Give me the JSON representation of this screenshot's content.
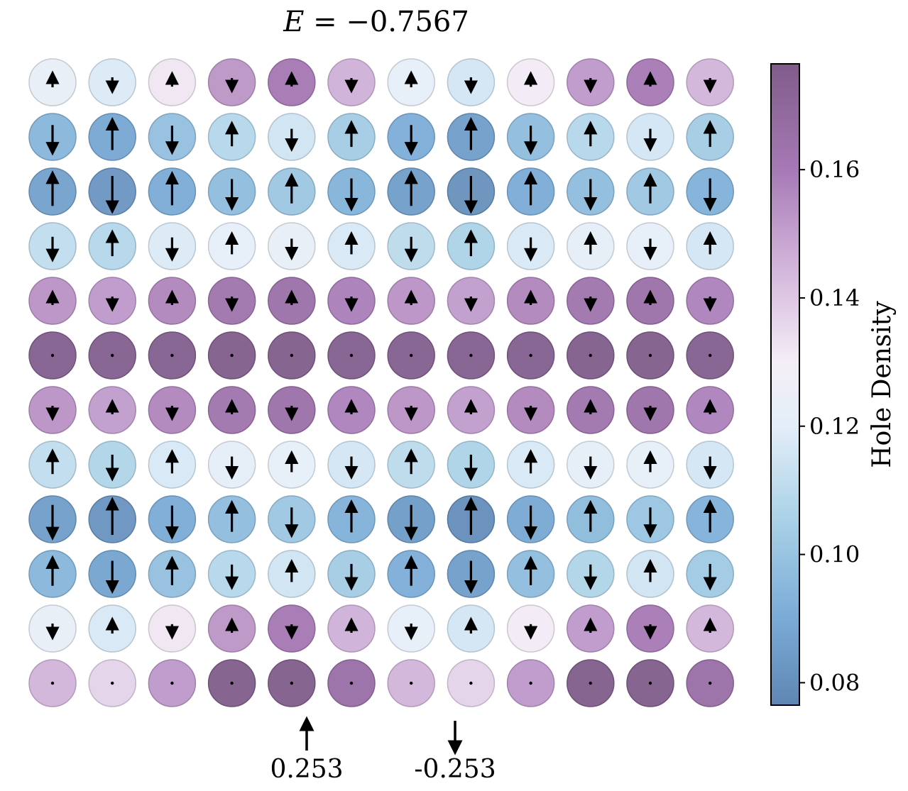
{
  "chart_data": {
    "type": "heatmap",
    "title": "E = −0.7567",
    "title_parts": {
      "symbol": "E",
      "rest": " = −0.7567"
    },
    "colorbar": {
      "label": "Hole Density",
      "ticks": [
        "0.08",
        "0.10",
        "0.12",
        "0.14",
        "0.16"
      ],
      "tick_values": [
        0.08,
        0.1,
        0.12,
        0.14,
        0.16
      ],
      "range": [
        0.0765,
        0.1765
      ],
      "colormap": [
        {
          "v": 0.0765,
          "color": "#5f86b3"
        },
        {
          "v": 0.09,
          "color": "#7aabd6"
        },
        {
          "v": 0.105,
          "color": "#a8d0e6"
        },
        {
          "v": 0.12,
          "color": "#e3eef8"
        },
        {
          "v": 0.13,
          "color": "#f4eef6"
        },
        {
          "v": 0.145,
          "color": "#d2b4da"
        },
        {
          "v": 0.16,
          "color": "#a679b5"
        },
        {
          "v": 0.1765,
          "color": "#805c8a"
        }
      ]
    },
    "legend": [
      {
        "arrow": "up",
        "value": "0.253"
      },
      {
        "arrow": "down",
        "value": "-0.253"
      }
    ],
    "rows": 12,
    "cols": 12,
    "hole_density": [
      [
        0.123,
        0.118,
        0.132,
        0.153,
        0.161,
        0.146,
        0.122,
        0.116,
        0.131,
        0.152,
        0.16,
        0.145
      ],
      [
        0.094,
        0.088,
        0.098,
        0.108,
        0.115,
        0.103,
        0.091,
        0.085,
        0.097,
        0.108,
        0.116,
        0.103
      ],
      [
        0.086,
        0.082,
        0.09,
        0.097,
        0.101,
        0.093,
        0.085,
        0.08,
        0.09,
        0.097,
        0.101,
        0.092
      ],
      [
        0.111,
        0.108,
        0.118,
        0.122,
        0.123,
        0.117,
        0.11,
        0.106,
        0.117,
        0.121,
        0.122,
        0.116
      ],
      [
        0.154,
        0.152,
        0.157,
        0.163,
        0.165,
        0.159,
        0.154,
        0.151,
        0.157,
        0.163,
        0.165,
        0.158
      ],
      [
        0.175,
        0.175,
        0.175,
        0.176,
        0.176,
        0.175,
        0.175,
        0.175,
        0.175,
        0.176,
        0.176,
        0.175
      ],
      [
        0.154,
        0.151,
        0.157,
        0.163,
        0.165,
        0.158,
        0.154,
        0.151,
        0.157,
        0.163,
        0.165,
        0.158
      ],
      [
        0.111,
        0.107,
        0.117,
        0.121,
        0.122,
        0.116,
        0.11,
        0.106,
        0.117,
        0.121,
        0.122,
        0.116
      ],
      [
        0.085,
        0.081,
        0.09,
        0.097,
        0.101,
        0.092,
        0.084,
        0.079,
        0.089,
        0.096,
        0.1,
        0.092
      ],
      [
        0.094,
        0.087,
        0.098,
        0.108,
        0.115,
        0.103,
        0.091,
        0.085,
        0.097,
        0.107,
        0.115,
        0.102
      ],
      [
        0.123,
        0.117,
        0.132,
        0.153,
        0.161,
        0.146,
        0.122,
        0.116,
        0.131,
        0.152,
        0.16,
        0.145
      ],
      [
        0.145,
        0.137,
        0.152,
        0.176,
        0.176,
        0.166,
        0.145,
        0.137,
        0.152,
        0.176,
        0.176,
        0.166
      ]
    ],
    "spin": [
      [
        0.08,
        -0.08,
        0.07,
        -0.04,
        0.03,
        -0.05,
        0.08,
        -0.08,
        0.07,
        -0.04,
        0.03,
        -0.05
      ],
      [
        -0.19,
        0.21,
        -0.18,
        0.15,
        -0.13,
        0.16,
        -0.19,
        0.21,
        -0.18,
        0.15,
        -0.13,
        0.16
      ],
      [
        0.23,
        -0.25,
        0.22,
        -0.2,
        0.19,
        -0.21,
        0.23,
        -0.25,
        0.22,
        -0.2,
        0.19,
        -0.21
      ],
      [
        -0.15,
        0.16,
        -0.14,
        0.13,
        -0.12,
        0.13,
        -0.15,
        0.16,
        -0.14,
        0.13,
        -0.12,
        0.13
      ],
      [
        0.04,
        -0.04,
        0.04,
        -0.03,
        0.03,
        -0.03,
        0.04,
        -0.04,
        0.04,
        -0.03,
        0.03,
        -0.03
      ],
      [
        0.0,
        0.0,
        0.0,
        0.0,
        0.0,
        0.0,
        0.0,
        0.0,
        0.0,
        0.0,
        0.0,
        0.0
      ],
      [
        -0.04,
        0.04,
        -0.04,
        0.03,
        -0.03,
        0.03,
        -0.04,
        0.04,
        -0.04,
        0.03,
        -0.03,
        0.03
      ],
      [
        0.15,
        -0.16,
        0.14,
        -0.13,
        0.12,
        -0.13,
        0.15,
        -0.16,
        0.14,
        -0.13,
        0.12,
        -0.13
      ],
      [
        -0.23,
        0.25,
        -0.22,
        0.2,
        -0.19,
        0.21,
        -0.23,
        0.25,
        -0.22,
        0.2,
        -0.19,
        0.21
      ],
      [
        0.19,
        -0.21,
        0.18,
        -0.15,
        0.13,
        -0.16,
        0.19,
        -0.21,
        0.18,
        -0.15,
        0.13,
        -0.16
      ],
      [
        -0.08,
        0.08,
        -0.07,
        0.04,
        -0.03,
        0.05,
        -0.08,
        0.08,
        -0.07,
        0.04,
        -0.03,
        0.05
      ],
      [
        0.0,
        0.0,
        0.0,
        0.0,
        0.0,
        0.0,
        0.0,
        0.0,
        0.0,
        0.0,
        0.0,
        0.0
      ]
    ]
  }
}
